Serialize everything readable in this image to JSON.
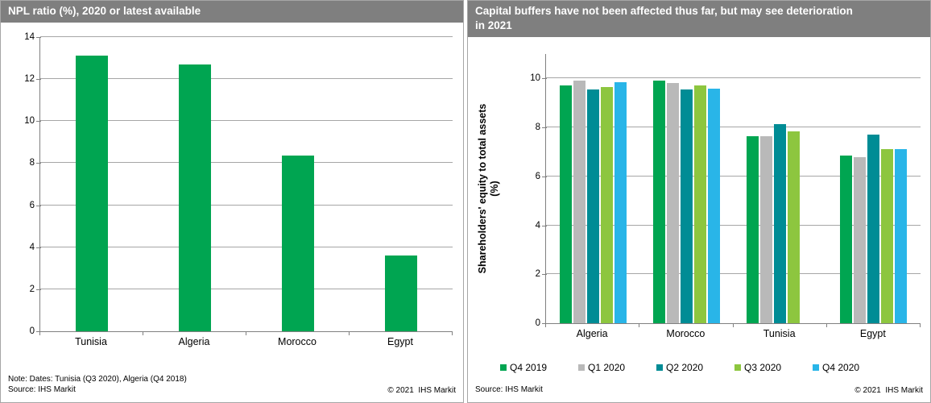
{
  "left_panel": {
    "note": "Note: Dates: Tunisia (Q3 2020), Algeria (Q4 2018)",
    "source": "Source: IHS Markit",
    "copyright": "© 2021  IHS Markit"
  },
  "right_panel": {
    "title_line1": "Capital buffers have not been affected thus far, but may see deterioration",
    "title_line2": "in 2021",
    "ylabel_line1": "Shareholders' equity to total assets",
    "ylabel_line2": "(%)",
    "source": "Source: IHS Markit",
    "copyright": "© 2021  IHS Markit"
  },
  "colors": {
    "header_bg": "#7f7f7f",
    "axis": "#808080",
    "gridline": "#a6a6a6",
    "green": "#00a551",
    "gray": "#b9b9b9",
    "teal": "#008c95",
    "light_green": "#8dc63f",
    "blue": "#29b5e8"
  },
  "chart_data": [
    {
      "type": "bar",
      "title": "NPL ratio (%), 2020 or latest available",
      "categories": [
        "Tunisia",
        "Algeria",
        "Morocco",
        "Egypt"
      ],
      "values": [
        13.1,
        12.7,
        8.35,
        3.6
      ],
      "bar_color": "#00a551",
      "ylim": [
        0,
        14
      ],
      "yticks": [
        0,
        2,
        4,
        6,
        8,
        10,
        12,
        14
      ],
      "grid": true,
      "legend_position": "none"
    },
    {
      "type": "bar",
      "title": "Capital buffers have not been affected thus far, but may see deterioration in 2021",
      "categories": [
        "Algeria",
        "Morocco",
        "Tunisia",
        "Egypt"
      ],
      "series": [
        {
          "name": "Q4 2019",
          "color": "#00a551",
          "values": [
            9.7,
            9.9,
            7.65,
            6.85
          ]
        },
        {
          "name": "Q1 2020",
          "color": "#b9b9b9",
          "values": [
            9.9,
            9.8,
            7.65,
            6.8
          ]
        },
        {
          "name": "Q2 2020",
          "color": "#008c95",
          "values": [
            9.55,
            9.55,
            8.15,
            7.7
          ]
        },
        {
          "name": "Q3 2020",
          "color": "#8dc63f",
          "values": [
            9.65,
            9.7,
            7.85,
            7.1
          ]
        },
        {
          "name": "Q4 2020",
          "color": "#29b5e8",
          "values": [
            9.85,
            9.6,
            null,
            7.1
          ]
        }
      ],
      "ylabel": "Shareholders' equity to total assets (%)",
      "ylim": [
        0,
        11
      ],
      "yticks": [
        0,
        2,
        4,
        6,
        8,
        10
      ],
      "grid": true,
      "legend_position": "bottom"
    }
  ]
}
